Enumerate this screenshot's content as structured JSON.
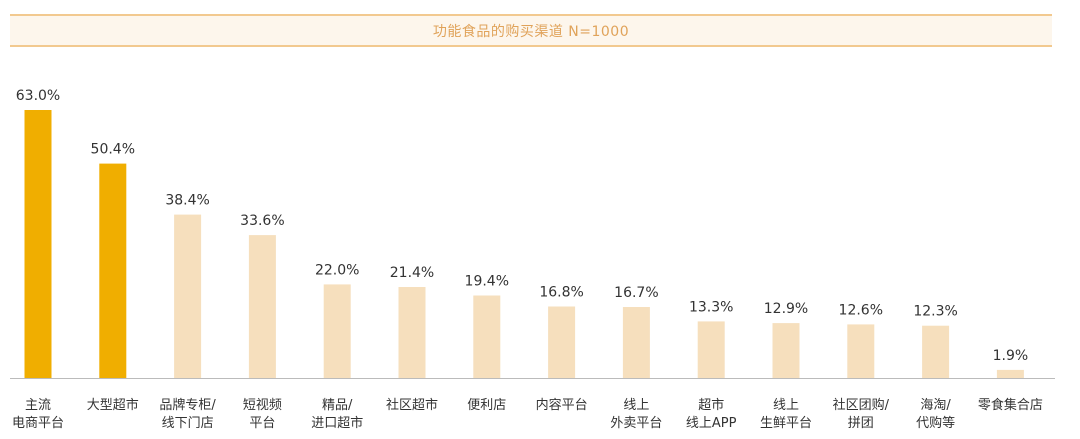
{
  "chart_data": {
    "type": "bar",
    "title": "功能食品的购买渠道 N=1000",
    "categories": [
      [
        "主流",
        "电商平台"
      ],
      [
        "大型超市"
      ],
      [
        "品牌专柜/",
        "线下门店"
      ],
      [
        "短视频",
        "平台"
      ],
      [
        "精品/",
        "进口超市"
      ],
      [
        "社区超市"
      ],
      [
        "便利店"
      ],
      [
        "内容平台"
      ],
      [
        "线上",
        "外卖平台"
      ],
      [
        "超市",
        "线上APP"
      ],
      [
        "线上",
        "生鲜平台"
      ],
      [
        "社区团购/",
        "拼团"
      ],
      [
        "海淘/",
        "代购等"
      ],
      [
        "零食集合店"
      ]
    ],
    "values": [
      63.0,
      50.4,
      38.4,
      33.6,
      22.0,
      21.4,
      19.4,
      16.8,
      16.7,
      13.3,
      12.9,
      12.6,
      12.3,
      1.9
    ],
    "value_labels": [
      "63.0%",
      "50.4%",
      "38.4%",
      "33.6%",
      "22.0%",
      "21.4%",
      "19.4%",
      "16.8%",
      "16.7%",
      "13.3%",
      "12.9%",
      "12.6%",
      "12.3%",
      "1.9%"
    ],
    "highlight_count": 2,
    "ylim": [
      0,
      63.0
    ],
    "xlabel": "",
    "ylabel": "",
    "grid": false,
    "legend": "none",
    "colors": {
      "highlight": "#f0ae00",
      "normal": "#f6dfbd",
      "title_text": "#e0a35a",
      "title_border": "#f2c98f",
      "title_bg": "#fdf6ec",
      "baseline": "#bbbbbb"
    }
  }
}
